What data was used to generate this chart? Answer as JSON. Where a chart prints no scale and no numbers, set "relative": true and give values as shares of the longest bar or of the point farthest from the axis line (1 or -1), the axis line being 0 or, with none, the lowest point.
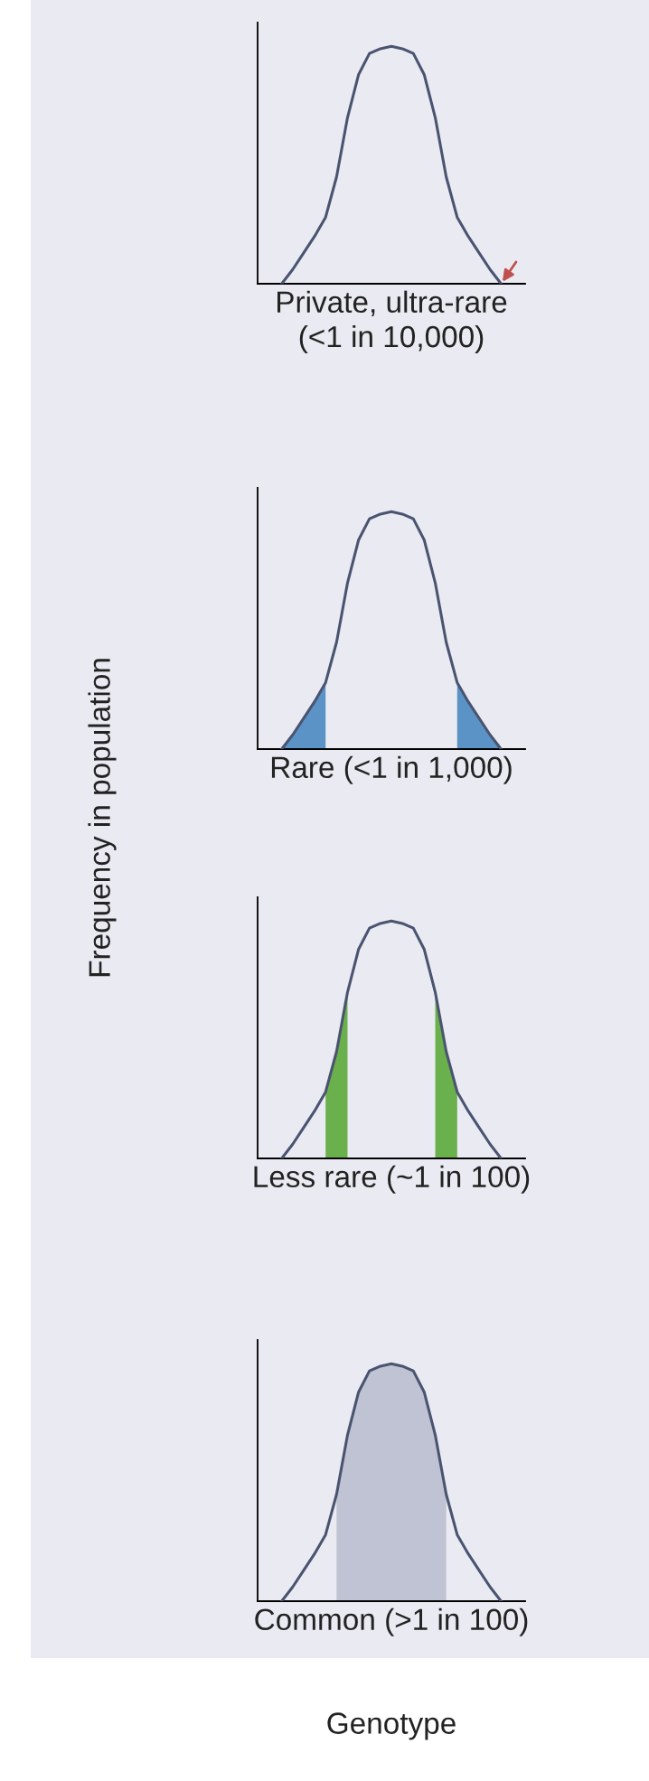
{
  "chart_data": [
    {
      "type": "line",
      "relative": true,
      "xlabel": "Private, ultra-rare\n(<1 in 10,000)",
      "categories": [
        null,
        null,
        null,
        null,
        null,
        null,
        null,
        null,
        null,
        null,
        null,
        null,
        null,
        null,
        null,
        null,
        null,
        null,
        null,
        null,
        null
      ],
      "series": [
        {
          "color": "#4a5470",
          "values": [
            0,
            0.06,
            0.13,
            0.2,
            0.28,
            0.45,
            0.7,
            0.88,
            0.97,
            0.99,
            1,
            0.99,
            0.97,
            0.88,
            0.7,
            0.45,
            0.28,
            0.2,
            0.13,
            0.06,
            0
          ]
        }
      ]
    },
    {
      "type": "line",
      "relative": true,
      "ylabel": "Frequency in population",
      "xlabel": "Rare (<1 in 1,000)",
      "categories": [
        null,
        null,
        null,
        null,
        null,
        null,
        null,
        null,
        null,
        null,
        null,
        null,
        null,
        null,
        null,
        null,
        null,
        null,
        null,
        null,
        null
      ],
      "series": [
        {
          "type": "area",
          "color": "#5b93c7",
          "values": [
            0,
            0.06,
            0.13,
            0.2,
            0.28,
            null,
            null,
            null,
            null,
            null,
            null,
            null,
            null,
            null,
            null,
            null,
            0.28,
            0.2,
            0.13,
            0.06,
            0
          ]
        },
        {
          "color": "#4a5470",
          "values": [
            0,
            0.06,
            0.13,
            0.2,
            0.28,
            0.45,
            0.7,
            0.88,
            0.97,
            0.99,
            1,
            0.99,
            0.97,
            0.88,
            0.7,
            0.45,
            0.28,
            0.2,
            0.13,
            0.06,
            0
          ]
        }
      ]
    },
    {
      "type": "line",
      "relative": true,
      "xlabel": "Less rare (~1 in 100)",
      "categories": [
        null,
        null,
        null,
        null,
        null,
        null,
        null,
        null,
        null,
        null,
        null,
        null,
        null,
        null,
        null,
        null,
        null,
        null,
        null,
        null,
        null
      ],
      "series": [
        {
          "type": "area",
          "color": "#6ab04c",
          "values": [
            null,
            null,
            null,
            null,
            0.28,
            0.45,
            0.7,
            null,
            null,
            null,
            null,
            null,
            null,
            null,
            0.7,
            0.45,
            0.28,
            null,
            null,
            null,
            null
          ]
        },
        {
          "color": "#4a5470",
          "values": [
            0,
            0.06,
            0.13,
            0.2,
            0.28,
            0.45,
            0.7,
            0.88,
            0.97,
            0.99,
            1,
            0.99,
            0.97,
            0.88,
            0.7,
            0.45,
            0.28,
            0.2,
            0.13,
            0.06,
            0
          ]
        }
      ]
    },
    {
      "type": "line",
      "relative": true,
      "xlabel": "Common (>1 in 100)",
      "annotations": [
        "Genotype"
      ],
      "categories": [
        null,
        null,
        null,
        null,
        null,
        null,
        null,
        null,
        null,
        null,
        null,
        null,
        null,
        null,
        null,
        null,
        null,
        null,
        null,
        null,
        null
      ],
      "series": [
        {
          "type": "area",
          "color": "#bfc3d3",
          "values": [
            null,
            null,
            null,
            null,
            null,
            0.45,
            0.7,
            0.88,
            0.97,
            0.99,
            1,
            0.99,
            0.97,
            0.88,
            0.7,
            0.45,
            null,
            null,
            null,
            null,
            null
          ]
        },
        {
          "color": "#4a5470",
          "values": [
            0,
            0.06,
            0.13,
            0.2,
            0.28,
            0.45,
            0.7,
            0.88,
            0.97,
            0.99,
            1,
            0.99,
            0.97,
            0.88,
            0.7,
            0.45,
            0.28,
            0.2,
            0.13,
            0.06,
            0
          ]
        }
      ]
    }
  ]
}
